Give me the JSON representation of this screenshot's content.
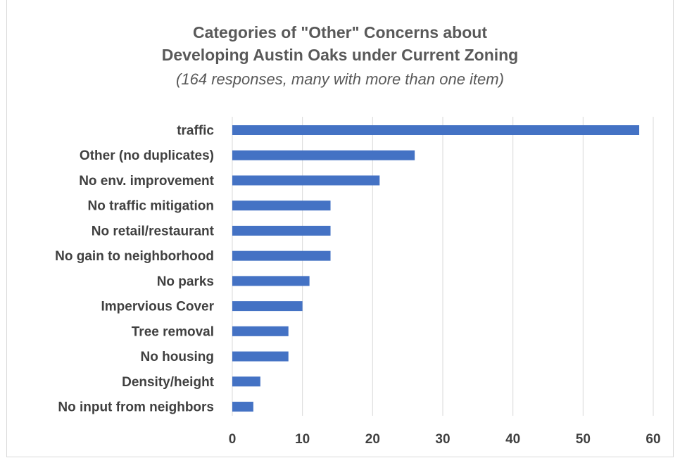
{
  "chart_data": {
    "type": "bar",
    "orientation": "horizontal",
    "title_lines": [
      "Categories of \"Other\" Concerns about",
      "Developing Austin Oaks under Current Zoning"
    ],
    "subtitle": "(164 responses, many with more than one item)",
    "categories": [
      "traffic",
      "Other (no duplicates)",
      "No env. improvement",
      "No traffic mitigation",
      "No retail/restaurant",
      "No gain to neighborhood",
      "No parks",
      "Impervious Cover",
      "Tree removal",
      "No housing",
      "Density/height",
      "No input from neighbors"
    ],
    "values": [
      58,
      26,
      21,
      14,
      14,
      14,
      11,
      10,
      8,
      8,
      4,
      3
    ],
    "xlim": [
      0,
      60
    ],
    "xticks": [
      0,
      10,
      20,
      30,
      40,
      50,
      60
    ],
    "xlabel": "",
    "ylabel": "",
    "grid": "vertical",
    "legend": "none",
    "bar_color": "#4472c4",
    "grid_color": "#d9d9d9"
  }
}
